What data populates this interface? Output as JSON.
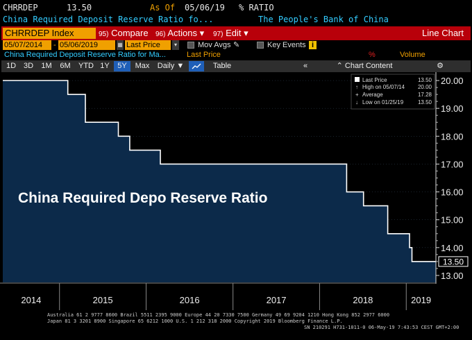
{
  "header": {
    "ticker": "CHRRDEP",
    "value": "13.50",
    "as_of_label": "As Of",
    "as_of_date": "05/06/19",
    "unit": "% RATIO",
    "description": "China Required Deposit Reserve Ratio fo...",
    "source": "The People's Bank of China"
  },
  "toolbar": {
    "ticker_index": "CHRRDEP Index",
    "compare_num": "95)",
    "compare_label": "Compare",
    "actions_num": "96)",
    "actions_label": "Actions",
    "edit_num": "97)",
    "edit_label": "Edit",
    "chart_type": "Line Chart"
  },
  "controls": {
    "start_date": "05/07/2014",
    "end_date": "05/06/2019",
    "field": "Last Price",
    "mov_avgs": "Mov Avgs",
    "key_events": "Key Events"
  },
  "legend": {
    "series": "China Required Deposit Reserve Ratio for Ma...",
    "field": "Last Price",
    "pct": "%",
    "volume": "Volume"
  },
  "periods": {
    "items": [
      "1D",
      "3D",
      "1M",
      "6M",
      "YTD",
      "1Y",
      "5Y",
      "Max"
    ],
    "active": "5Y",
    "frequency": "Daily",
    "table_label": "Table",
    "chart_content": "Chart Content"
  },
  "stats": {
    "last_label": "Last Price",
    "last_value": "13.50",
    "high_label": "High on 05/07/14",
    "high_value": "20.00",
    "avg_label": "Average",
    "avg_value": "17.28",
    "low_label": "Low on 01/25/19",
    "low_value": "13.50"
  },
  "chart_data": {
    "type": "area",
    "annotation": "China Required Depo Reserve Ratio",
    "x_tick_labels": [
      "2014",
      "2015",
      "2016",
      "2017",
      "2018",
      "2019"
    ],
    "y_tick_labels": [
      "20.00",
      "19.00",
      "18.00",
      "17.00",
      "16.00",
      "15.00",
      "14.00",
      "13.00"
    ],
    "ylim": [
      12.75,
      20.3
    ],
    "xlim": [
      "2014-05-07",
      "2019-05-06"
    ],
    "current_value_label": "13.50",
    "series": [
      {
        "x": [
          "2014-05-07",
          "2015-02-05",
          "2015-04-20",
          "2015-09-06",
          "2015-10-24",
          "2016-03-01",
          "2018-04-25",
          "2018-07-05",
          "2018-10-15",
          "2019-01-15",
          "2019-01-25",
          "2019-05-06"
        ],
        "values": [
          20.0,
          19.5,
          18.5,
          18.0,
          17.5,
          17.0,
          16.0,
          15.5,
          14.5,
          14.0,
          13.5,
          13.5
        ]
      }
    ],
    "colors": {
      "fill": "#0c2a4a",
      "line": "#ffffff",
      "background": "#000000"
    }
  },
  "footer": {
    "line1": "Australia 61 2 9777 8600 Brazil 5511 2395 9000 Europe 44 20 7330 7500 Germany 49 69 9204 1210 Hong Kong 852 2977 6000",
    "line2": "Japan 81 3 3201 8900        Singapore 65 6212 1000       U.S. 1 212 318 2000              Copyright 2019 Bloomberg Finance L.P.",
    "line3": "SN 210291 H731-1011-0 06-May-19  7:43:53 CEST GMT+2:00"
  }
}
